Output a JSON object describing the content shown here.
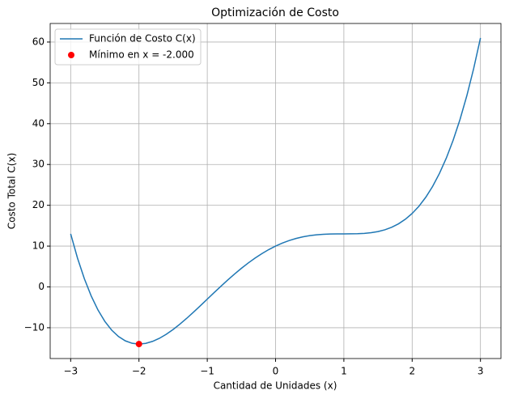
{
  "chart_data": {
    "type": "line",
    "title": "Optimización de Costo",
    "xlabel": "Cantidad de Unidades (x)",
    "ylabel": "Costo Total C(x)",
    "x": [
      -3.0,
      -2.9,
      -2.8,
      -2.7,
      -2.6,
      -2.5,
      -2.4,
      -2.3,
      -2.2,
      -2.1,
      -2.0,
      -1.9,
      -1.8,
      -1.7,
      -1.6,
      -1.5,
      -1.4,
      -1.3,
      -1.2,
      -1.1,
      -1.0,
      -0.9,
      -0.8,
      -0.7,
      -0.6,
      -0.5,
      -0.4,
      -0.3,
      -0.2,
      -0.1,
      0.0,
      0.1,
      0.2,
      0.3,
      0.4,
      0.5,
      0.6,
      0.7,
      0.8,
      0.9,
      1.0,
      1.1,
      1.2,
      1.3,
      1.4,
      1.5,
      1.6,
      1.7,
      1.8,
      1.9,
      2.0,
      2.1,
      2.2,
      2.3,
      2.4,
      2.5,
      2.6,
      2.7,
      2.8,
      2.9,
      3.0
    ],
    "series": [
      {
        "name": "Función de Costo C(x)",
        "type": "line",
        "color": "#1f77b4",
        "values": [
          13,
          7.0681,
          2.0256,
          -2.1959,
          -5.6624,
          -8.4375,
          -10.5824,
          -12.1559,
          -13.2144,
          -13.8119,
          -14,
          -13.8279,
          -13.3424,
          -12.5879,
          -11.6064,
          -10.4375,
          -9.1184,
          -7.6839,
          -6.1664,
          -4.5959,
          -3,
          -1.4039,
          0.1696,
          1.7001,
          3.1696,
          4.5625,
          5.8656,
          7.0681,
          8.1616,
          9.1401,
          10,
          10.7401,
          11.3616,
          11.8681,
          12.2656,
          12.5625,
          12.7696,
          12.9001,
          12.9696,
          12.9961,
          13,
          13.0041,
          13.0336,
          13.1161,
          13.2816,
          13.5625,
          13.9936,
          14.6121,
          15.4576,
          16.5721,
          18,
          19.7881,
          21.9856,
          24.6441,
          27.8176,
          31.5625,
          35.9376,
          41.0041,
          46.8256,
          53.4681,
          61
        ]
      },
      {
        "name": "Mínimo en x = -2.000",
        "type": "scatter",
        "color": "#ff0000",
        "x": [
          -2
        ],
        "values": [
          -14
        ]
      }
    ],
    "xlim": [
      -3.3,
      3.3
    ],
    "ylim": [
      -17.55,
      64.55
    ],
    "xticks": [
      {
        "value": -3,
        "label": "−3"
      },
      {
        "value": -2,
        "label": "−2"
      },
      {
        "value": -1,
        "label": "−1"
      },
      0,
      1,
      2,
      3
    ],
    "yticks": [
      {
        "value": -10,
        "label": "−10"
      },
      0,
      10,
      20,
      30,
      40,
      50,
      60
    ],
    "grid": true,
    "legend": "upper left"
  }
}
